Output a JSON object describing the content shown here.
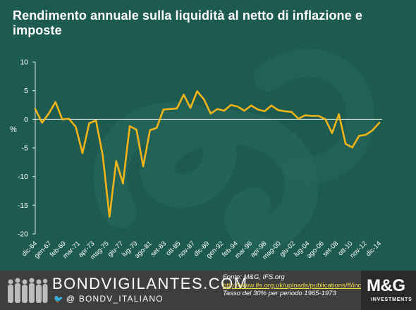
{
  "header": {
    "title": "Rendimento annuale sulla liquidità  al netto di inflazione  e imposte"
  },
  "chart_data": {
    "type": "line",
    "title": "Rendimento annuale sulla liquidità  al netto di inflazione  e imposte",
    "ylabel": "%",
    "xlabel": "",
    "ylim": [
      -20,
      10
    ],
    "yticks": [
      10,
      5,
      0,
      -5,
      -10,
      -15,
      -20
    ],
    "ytick_labels": [
      "10",
      "5",
      "0",
      "-5",
      "-10",
      "-15",
      "-20"
    ],
    "xtick_labels": [
      "dic-64",
      "gen-67",
      "feb-69",
      "mar-71",
      "apr-73",
      "mag-75",
      "giu-77",
      "lug-79",
      "ago-81",
      "set-83",
      "ott-85",
      "nov-87",
      "dic-89",
      "gen-92",
      "feb-94",
      "mar-96",
      "apr-98",
      "mag-00",
      "giu-02",
      "lug-04",
      "ago-06",
      "set-08",
      "ott-10",
      "nov-12",
      "dic-14"
    ],
    "grid": false,
    "legend": "none",
    "line_color": "#f2b417",
    "series": [
      {
        "values": [
          1.8,
          -0.6,
          1.0,
          3.0,
          0.0,
          0.1,
          -1.3,
          -5.9,
          -0.7,
          -0.2,
          -6.3,
          -17.0,
          -7.3,
          -11.2,
          -1.2,
          -1.8,
          -8.2,
          -1.9,
          -1.5,
          1.7,
          1.8,
          1.9,
          4.3,
          2.0,
          4.9,
          3.5,
          1.0,
          1.8,
          1.5,
          2.5,
          2.2,
          1.5,
          2.4,
          1.7,
          1.4,
          2.4,
          1.6,
          1.4,
          1.3,
          0.1,
          0.7,
          0.6,
          0.6,
          0.0,
          -2.4,
          0.9,
          -4.3,
          -4.9,
          -2.9,
          -2.7,
          -1.9,
          -0.6
        ]
      }
    ]
  },
  "footer": {
    "brand": "BONDVIGILANTES.COM",
    "twitter": "@  BONDV_ITALIANO",
    "source_label": "Fonte: M&G,  IFS.org",
    "source_url": "http://www.ifs.org.uk/uploads/publications/ff/income.xls",
    "source_note": "Tasso del 30% per periodo 1965-1973",
    "logo_main": "M&G",
    "logo_sub": "INVESTMENTS",
    "colors": {
      "background": "#1d5a4f",
      "footer": "#3e3e3e",
      "line": "#f2b417",
      "link": "#f3dc4a"
    }
  }
}
